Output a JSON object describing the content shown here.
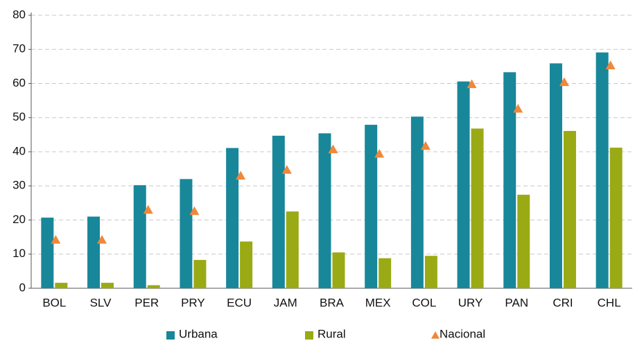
{
  "chart_data": {
    "type": "bar",
    "categories": [
      "BOL",
      "SLV",
      "PER",
      "PRY",
      "ECU",
      "JAM",
      "BRA",
      "MEX",
      "COL",
      "URY",
      "PAN",
      "CRI",
      "CHL"
    ],
    "series": [
      {
        "name": "Urbana",
        "color": "#18879a",
        "values": [
          20.7,
          21,
          30.2,
          32,
          41.1,
          44.7,
          45.4,
          47.9,
          50.3,
          60.6,
          63.3,
          65.9,
          69.1
        ]
      },
      {
        "name": "Rural",
        "color": "#9aaa14",
        "values": [
          1.6,
          1.6,
          0.9,
          8.3,
          13.7,
          22.5,
          10.5,
          8.8,
          9.5,
          46.8,
          27.4,
          46.1,
          41.2
        ]
      },
      {
        "name": "Nacional",
        "color": "#f0883a",
        "marker": "triangle",
        "values": [
          14.2,
          14.2,
          23,
          22.6,
          33,
          34.7,
          40.7,
          39.4,
          41.7,
          59.8,
          52.6,
          60.4,
          65.3
        ]
      }
    ],
    "ylim": [
      0,
      80
    ],
    "yticks": [
      0,
      10,
      20,
      30,
      40,
      50,
      60,
      70,
      80
    ],
    "grid": true,
    "legend": "bottom"
  }
}
